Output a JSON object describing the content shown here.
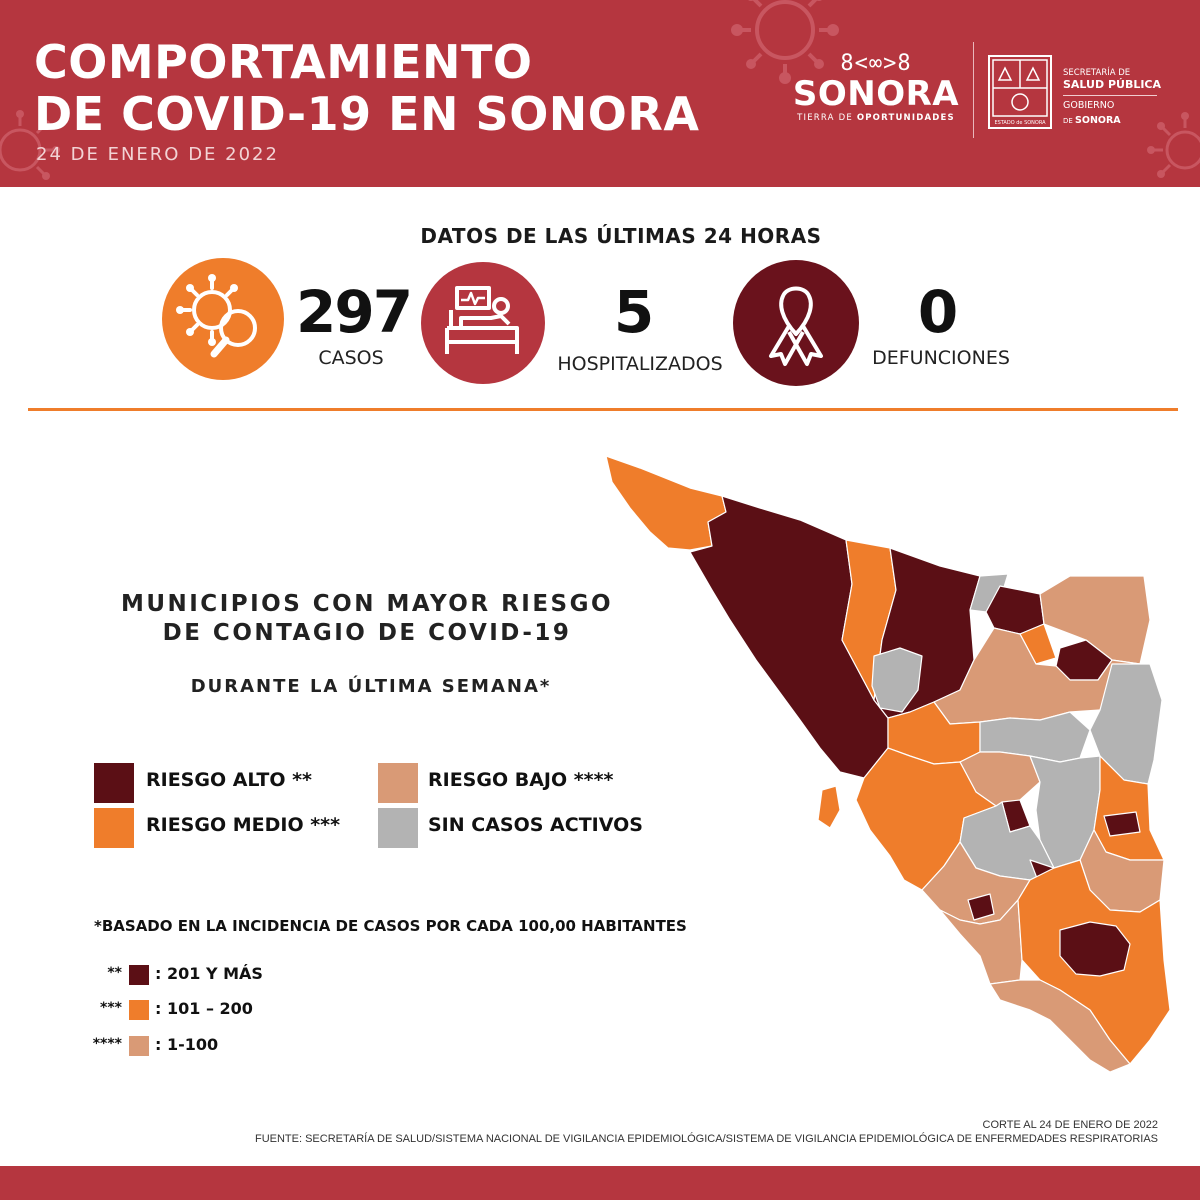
{
  "header": {
    "title_line1": "COMPORTAMIENTO",
    "title_line2": "DE COVID-19 EN SONORA",
    "date": "24 DE ENERO DE 2022",
    "brand_glyph": "8<∞>8",
    "brand_name": "SONORA",
    "brand_tag_1": "TIERRA DE ",
    "brand_tag_2": "OPORTUNIDADES",
    "shield_text": "ESTADO de SONORA",
    "gov_line1": "SECRETARÍA DE",
    "gov_line2": "SALUD PÚBLICA",
    "gov_line3": "GOBIERNO",
    "gov_line4_prefix": "DE ",
    "gov_line4": "SONORA"
  },
  "stats": {
    "title": "DATOS DE LAS ÚLTIMAS 24 HORAS",
    "cases_value": "297",
    "cases_label": "CASOS",
    "hosp_value": "5",
    "hosp_label": "HOSPITALIZADOS",
    "deaths_value": "0",
    "deaths_label": "DEFUNCIONES"
  },
  "map_section": {
    "title_line1": "MUNICIPIOS CON MAYOR RIESGO",
    "title_line2": "DE CONTAGIO DE COVID-19",
    "subtitle": "DURANTE LA ÚLTIMA SEMANA*",
    "legend": {
      "high": "RIESGO ALTO **",
      "medium": "RIESGO MEDIO ***",
      "low": "RIESGO BAJO ****",
      "none": "SIN CASOS ACTIVOS"
    },
    "note": "*BASADO EN LA INCIDENCIA DE CASOS POR CADA 100,00 HABITANTES",
    "key": [
      {
        "stars": "**",
        "range": ": 201 Y MÁS"
      },
      {
        "stars": "***",
        "range": ": 101 – 200"
      },
      {
        "stars": "****",
        "range": ": 1-100"
      }
    ]
  },
  "colors": {
    "brand_red": "#b5363f",
    "high": "#5b0f15",
    "medium": "#ef7d2b",
    "low": "#d99a76",
    "none": "#b3b3b3"
  },
  "icons": {
    "cases": "virus-magnifier-icon",
    "hospital": "hospital-bed-icon",
    "deaths": "ribbon-icon"
  },
  "footer": {
    "corte": "CORTE AL 24 DE ENERO DE 2022",
    "fuente": "FUENTE: SECRETARÍA DE SALUD/SISTEMA NACIONAL DE VIGILANCIA EPIDEMIOLÓGICA/SISTEMA DE VIGILANCIA EPIDEMIOLÓGICA DE ENFERMEDADES RESPIRATORIAS"
  }
}
